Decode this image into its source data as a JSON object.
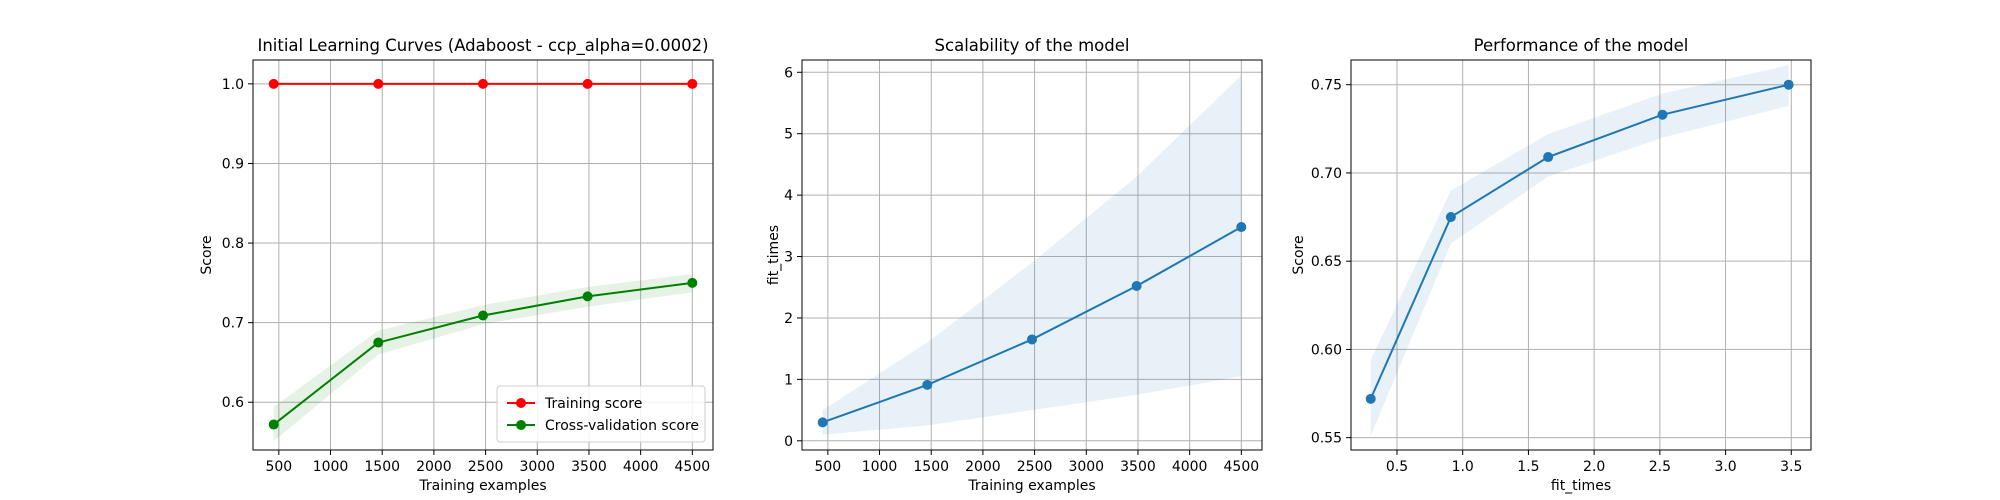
{
  "chart_data": [
    {
      "type": "line",
      "title": "Initial Learning Curves (Adaboost - ccp_alpha=0.0002)",
      "xlabel": "Training examples",
      "ylabel": "Score",
      "xlim": [
        250,
        4700
      ],
      "ylim": [
        0.54,
        1.03
      ],
      "xticks": [
        500,
        1000,
        1500,
        2000,
        2500,
        3000,
        3500,
        4000,
        4500
      ],
      "xtick_labels": [
        "500",
        "1000",
        "1500",
        "2000",
        "2500",
        "3000",
        "3500",
        "4000",
        "4500"
      ],
      "yticks": [
        0.6,
        0.7,
        0.8,
        0.9,
        1.0
      ],
      "ytick_labels": [
        "0.6",
        "0.7",
        "0.8",
        "0.9",
        "1.0"
      ],
      "grid": true,
      "legend_position": "bottom-right",
      "x": [
        450,
        1462,
        2475,
        3487,
        4500
      ],
      "series": [
        {
          "name": "Training score",
          "color": "#ff0000",
          "values": [
            1.0,
            1.0,
            1.0,
            1.0,
            1.0
          ],
          "lower": [
            1.0,
            1.0,
            1.0,
            1.0,
            1.0
          ],
          "upper": [
            1.0,
            1.0,
            1.0,
            1.0,
            1.0
          ]
        },
        {
          "name": "Cross-validation score",
          "color": "#008000",
          "values": [
            0.572,
            0.675,
            0.709,
            0.733,
            0.75
          ],
          "lower": [
            0.551,
            0.66,
            0.698,
            0.72,
            0.738
          ],
          "upper": [
            0.594,
            0.69,
            0.722,
            0.745,
            0.761
          ]
        }
      ]
    },
    {
      "type": "line",
      "title": "Scalability of the model",
      "xlabel": "Training examples",
      "ylabel": "fit_times",
      "xlim": [
        250,
        4700
      ],
      "ylim": [
        -0.15,
        6.2
      ],
      "xticks": [
        500,
        1000,
        1500,
        2000,
        2500,
        3000,
        3500,
        4000,
        4500
      ],
      "xtick_labels": [
        "500",
        "1000",
        "1500",
        "2000",
        "2500",
        "3000",
        "3500",
        "4000",
        "4500"
      ],
      "yticks": [
        0,
        1,
        2,
        3,
        4,
        5,
        6
      ],
      "ytick_labels": [
        "0",
        "1",
        "2",
        "3",
        "4",
        "5",
        "6"
      ],
      "grid": true,
      "x": [
        450,
        1462,
        2475,
        3487,
        4500
      ],
      "series": [
        {
          "name": "fit_times",
          "color": "#1f77b4",
          "values": [
            0.3,
            0.91,
            1.65,
            2.52,
            3.48
          ],
          "lower": [
            0.1,
            0.25,
            0.5,
            0.75,
            1.05
          ],
          "upper": [
            0.5,
            1.6,
            2.9,
            4.3,
            5.95
          ]
        }
      ]
    },
    {
      "type": "line",
      "title": "Performance of the model",
      "xlabel": "fit_times",
      "ylabel": "Score",
      "xlim": [
        0.15,
        3.65
      ],
      "ylim": [
        0.543,
        0.764
      ],
      "xticks": [
        0.5,
        1.0,
        1.5,
        2.0,
        2.5,
        3.0,
        3.5
      ],
      "xtick_labels": [
        "0.5",
        "1.0",
        "1.5",
        "2.0",
        "2.5",
        "3.0",
        "3.5"
      ],
      "yticks": [
        0.55,
        0.6,
        0.65,
        0.7,
        0.75
      ],
      "ytick_labels": [
        "0.55",
        "0.60",
        "0.65",
        "0.70",
        "0.75"
      ],
      "grid": true,
      "x": [
        0.3,
        0.91,
        1.65,
        2.52,
        3.48
      ],
      "series": [
        {
          "name": "Score",
          "color": "#1f77b4",
          "values": [
            0.572,
            0.675,
            0.709,
            0.733,
            0.75
          ],
          "lower": [
            0.551,
            0.66,
            0.698,
            0.72,
            0.738
          ],
          "upper": [
            0.594,
            0.69,
            0.722,
            0.745,
            0.761
          ]
        }
      ]
    }
  ]
}
